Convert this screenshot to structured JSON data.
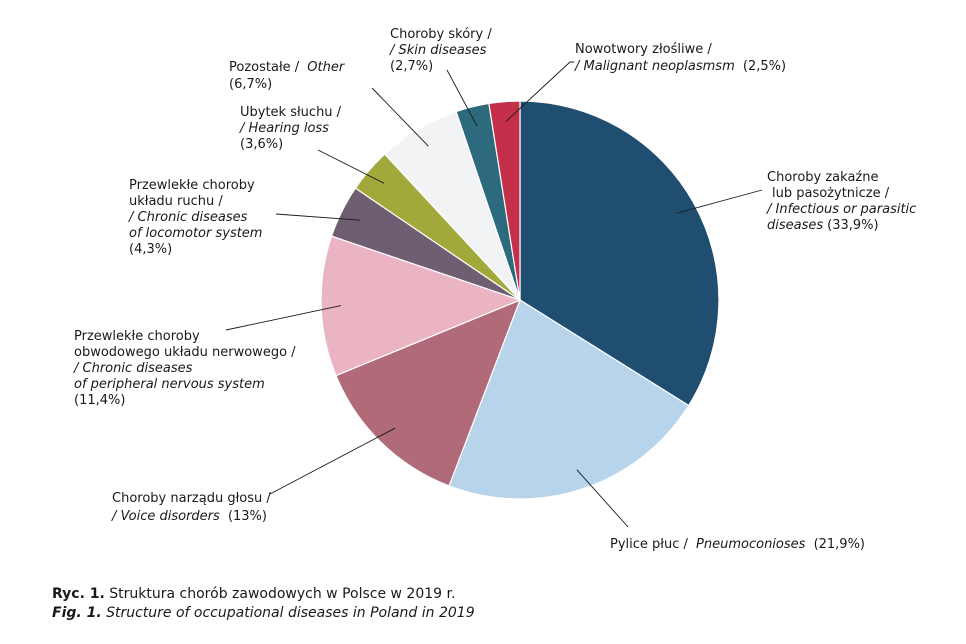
{
  "chart_data": {
    "type": "pie",
    "slices": [
      {
        "pl": "Choroby zakaźne lub pasożytnicze /",
        "en": "/ Infectious or parasitic diseases",
        "pct_label": "(33,9%)",
        "value": 33.9,
        "color": "#1f4e71"
      },
      {
        "pl": "Pylice płuc /",
        "en": "Pneumoconioses",
        "pct_label": "(21,9%)",
        "value": 21.9,
        "color": "#b7d4ea"
      },
      {
        "pl": "Choroby narządu głosu /",
        "en": "/ Voice disorders",
        "pct_label": "(13%)",
        "value": 13.0,
        "color": "#b06a78"
      },
      {
        "pl": "Przewlekłe choroby obwodowego układu nerwowego /",
        "en": "/ Chronic diseases of peripheral nervous system",
        "pct_label": "(11,4%)",
        "value": 11.4,
        "color": "#ebb4c2"
      },
      {
        "pl": "Przewlekłe choroby układu ruchu /",
        "en": "/ Chronic diseases of locomotor system",
        "pct_label": "(4,3%)",
        "value": 4.3,
        "color": "#6f5d72"
      },
      {
        "pl": "Ubytek słuchu /",
        "en": "/ Hearing loss",
        "pct_label": "(3,6%)",
        "value": 3.6,
        "color": "#a2a93b"
      },
      {
        "pl": "Pozostałe /",
        "en": "Other",
        "pct_label": "(6,7%)",
        "value": 6.7,
        "color": "#f2f3f5"
      },
      {
        "pl": "Choroby skóry /",
        "en": "/ Skin diseases",
        "pct_label": "(2,7%)",
        "value": 2.7,
        "color": "#2d6a7d"
      },
      {
        "pl": "Nowotwory złośliwe /",
        "en": "/ Malignant neoplasmsm",
        "pct_label": "(2,5%)",
        "value": 2.5,
        "color": "#c4304a"
      }
    ]
  },
  "caption": {
    "pl_prefix": "Ryc. 1.",
    "pl_text": " Struktura chorób zawodowych w Polsce w 2019 r.",
    "en_prefix": "Fig. 1.",
    "en_text": " Structure of occupational diseases in Poland in 2019"
  }
}
